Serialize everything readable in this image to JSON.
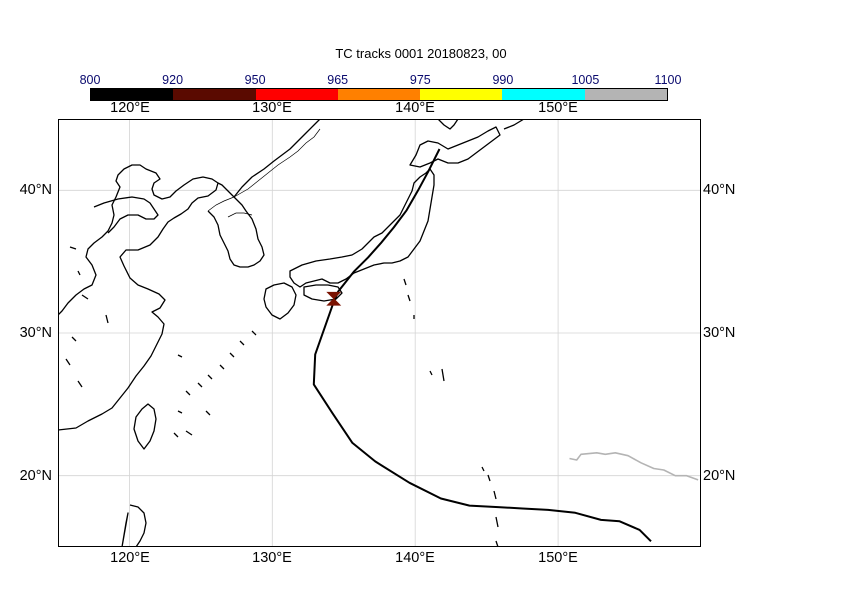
{
  "title": "TC tracks  0001 20180823, 00",
  "colorbar": {
    "levels": [
      "800",
      "920",
      "950",
      "965",
      "975",
      "990",
      "1005",
      "1100"
    ],
    "colors": [
      "#000000",
      "#5a0a00",
      "#ff0000",
      "#ff8000",
      "#ffff00",
      "#00ffff",
      "#b4b4b4"
    ]
  },
  "axes": {
    "lon_ticks": [
      "120°E",
      "130°E",
      "140°E",
      "150°E"
    ],
    "lat_ticks": [
      "40°N",
      "30°N",
      "20°N"
    ],
    "lon_range": [
      115,
      160
    ],
    "lat_range": [
      15,
      45
    ],
    "grid": true
  },
  "tracks": [
    {
      "color": "#000000",
      "points": [
        [
          156.5,
          15.4
        ],
        [
          155.7,
          16.2
        ],
        [
          154.3,
          16.8
        ],
        [
          153.0,
          16.9
        ],
        [
          151.2,
          17.4
        ],
        [
          149.3,
          17.6
        ],
        [
          147.5,
          17.7
        ],
        [
          145.8,
          17.8
        ],
        [
          143.8,
          17.9
        ],
        [
          141.8,
          18.4
        ],
        [
          139.6,
          19.5
        ],
        [
          137.2,
          21.0
        ],
        [
          135.6,
          22.3
        ],
        [
          134.2,
          24.4
        ],
        [
          132.9,
          26.4
        ],
        [
          133.0,
          28.5
        ],
        [
          133.6,
          30.2
        ],
        [
          134.2,
          31.9
        ],
        [
          134.6,
          32.9
        ],
        [
          135.7,
          34.3
        ],
        [
          136.7,
          35.3
        ],
        [
          137.6,
          36.3
        ],
        [
          138.5,
          37.4
        ],
        [
          139.4,
          38.6
        ],
        [
          140.2,
          40.0
        ],
        [
          140.9,
          41.3
        ],
        [
          141.7,
          42.9
        ]
      ]
    },
    {
      "color": "#b4b4b4",
      "points": [
        [
          150.8,
          21.2
        ],
        [
          151.3,
          21.1
        ],
        [
          151.6,
          21.5
        ],
        [
          152.7,
          21.6
        ],
        [
          153.3,
          21.5
        ],
        [
          154.0,
          21.6
        ],
        [
          154.9,
          21.4
        ],
        [
          155.8,
          20.9
        ],
        [
          156.7,
          20.5
        ],
        [
          157.4,
          20.4
        ],
        [
          158.2,
          20.0
        ],
        [
          159.0,
          20.0
        ],
        [
          159.8,
          19.7
        ]
      ]
    }
  ],
  "marker": {
    "lon": 134.3,
    "lat": 32.4,
    "color": "#7a1200",
    "shape": "hourglass"
  }
}
